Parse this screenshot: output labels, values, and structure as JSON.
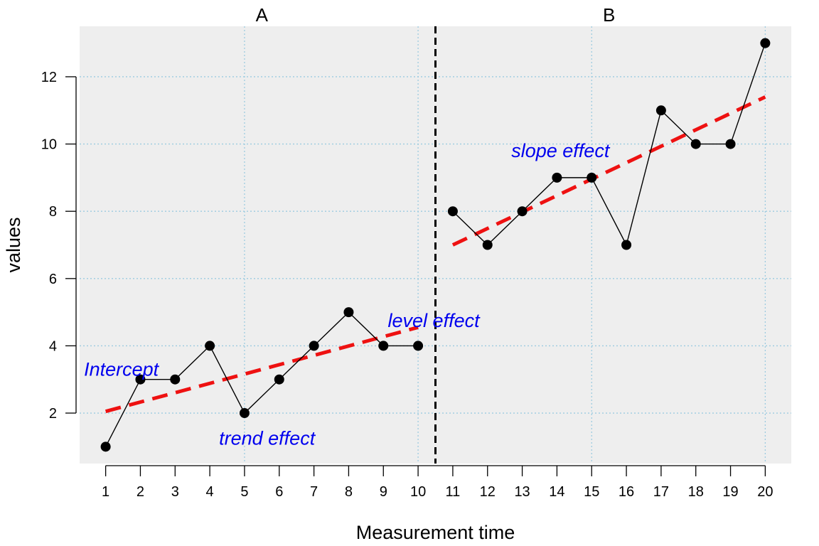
{
  "chart_data": {
    "type": "line",
    "xlabel": "Measurement time",
    "ylabel": "values",
    "xlim": [
      0.25,
      20.75
    ],
    "ylim": [
      0.5,
      13.5
    ],
    "x_ticks": [
      1,
      2,
      3,
      4,
      5,
      6,
      7,
      8,
      9,
      10,
      11,
      12,
      13,
      14,
      15,
      16,
      17,
      18,
      19,
      20
    ],
    "y_ticks": [
      2,
      4,
      6,
      8,
      10,
      12
    ],
    "grid": true,
    "background": "#eeeeee",
    "phases": [
      {
        "name": "A",
        "x_range": [
          1,
          10
        ]
      },
      {
        "name": "B",
        "x_range": [
          11,
          20
        ]
      }
    ],
    "phase_change_x": 10.5,
    "series": [
      {
        "x": [
          1,
          2,
          3,
          4,
          5,
          6,
          7,
          8,
          9,
          10,
          11,
          12,
          13,
          14,
          15,
          16,
          17,
          18,
          19,
          20
        ],
        "values": [
          1,
          3,
          3,
          4,
          2,
          3,
          4,
          5,
          4,
          4,
          8,
          7,
          8,
          9,
          9,
          7,
          11,
          10,
          10,
          13
        ],
        "color": "#000000"
      }
    ],
    "trend_lines": [
      {
        "x": [
          1,
          10
        ],
        "y": [
          2.05,
          4.55
        ],
        "color": "#ee1111",
        "style": "dashed"
      },
      {
        "x": [
          11,
          20
        ],
        "y": [
          7.0,
          11.4
        ],
        "color": "#ee1111",
        "style": "dashed"
      }
    ],
    "annotations": [
      {
        "text": "Intercept",
        "x": 1.45,
        "y": 3.3,
        "color": "#0000ee"
      },
      {
        "text": "trend effect",
        "x": 5.65,
        "y": 1.25,
        "color": "#0000ee"
      },
      {
        "text": "level effect",
        "x": 10.45,
        "y": 4.75,
        "color": "#0000ee"
      },
      {
        "text": "slope effect",
        "x": 14.1,
        "y": 9.8,
        "color": "#0000ee"
      }
    ]
  }
}
